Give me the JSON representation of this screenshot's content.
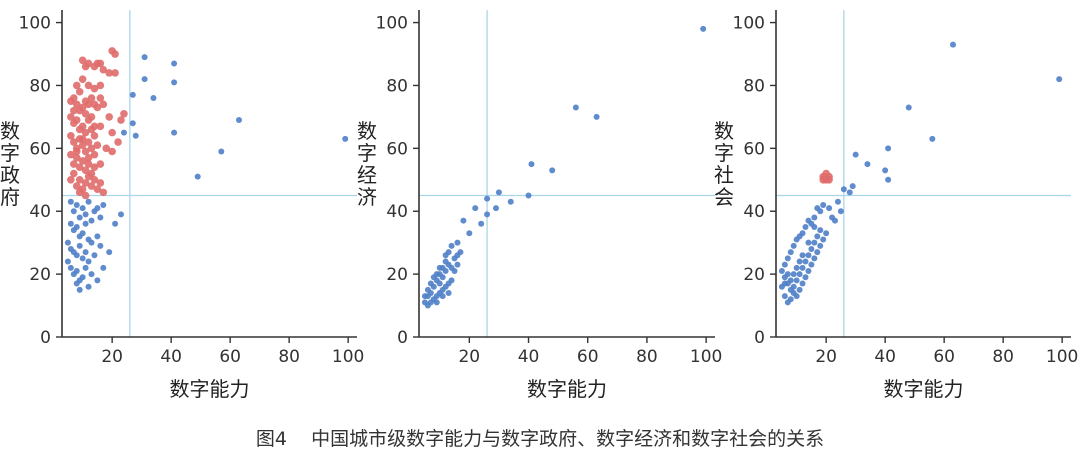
{
  "caption": {
    "label": "图4",
    "text": "中国城市级数字能力与数字政府、数字经济和数字社会的关系"
  },
  "colors": {
    "blue": "#4f7fc8",
    "red": "#e06b6b",
    "refline": "#a9d6ea",
    "axis": "#333333"
  },
  "chart_data": [
    {
      "type": "scatter",
      "title": "",
      "xlabel": "数字能力",
      "ylabel": "数字政府",
      "xlim": [
        3,
        103
      ],
      "ylim": [
        0,
        104
      ],
      "xticks": [
        20,
        40,
        60,
        80,
        100
      ],
      "yticks": [
        0,
        20,
        40,
        60,
        80,
        100
      ],
      "ref_lines": {
        "x": 26,
        "y": 45
      },
      "grid": false,
      "legend": "none",
      "series": [
        {
          "color": "red",
          "points": [
            [
              10,
              88
            ],
            [
              11,
              86
            ],
            [
              12,
              87
            ],
            [
              14,
              86
            ],
            [
              15,
              87
            ],
            [
              16,
              87
            ],
            [
              17,
              85
            ],
            [
              20,
              91
            ],
            [
              21,
              90
            ],
            [
              19,
              84
            ],
            [
              21,
              84
            ],
            [
              8,
              80
            ],
            [
              9,
              78
            ],
            [
              10,
              82
            ],
            [
              12,
              80
            ],
            [
              14,
              79
            ],
            [
              16,
              80
            ],
            [
              6,
              75
            ],
            [
              7,
              76
            ],
            [
              8,
              74
            ],
            [
              9,
              72
            ],
            [
              10,
              73
            ],
            [
              11,
              75
            ],
            [
              12,
              74
            ],
            [
              13,
              76
            ],
            [
              14,
              74
            ],
            [
              15,
              73
            ],
            [
              17,
              74
            ],
            [
              23,
              69
            ],
            [
              24,
              71
            ],
            [
              6,
              70
            ],
            [
              7,
              68
            ],
            [
              8,
              69
            ],
            [
              9,
              66
            ],
            [
              10,
              67
            ],
            [
              11,
              65
            ],
            [
              12,
              69
            ],
            [
              13,
              66
            ],
            [
              14,
              64
            ],
            [
              16,
              67
            ],
            [
              19,
              70
            ],
            [
              20,
              65
            ],
            [
              22,
              62
            ],
            [
              6,
              64
            ],
            [
              7,
              62
            ],
            [
              8,
              60
            ],
            [
              9,
              63
            ],
            [
              10,
              61
            ],
            [
              11,
              59
            ],
            [
              12,
              62
            ],
            [
              13,
              60
            ],
            [
              14,
              58
            ],
            [
              15,
              61
            ],
            [
              18,
              60
            ],
            [
              20,
              59
            ],
            [
              6,
              58
            ],
            [
              7,
              55
            ],
            [
              8,
              57
            ],
            [
              9,
              54
            ],
            [
              10,
              56
            ],
            [
              11,
              53
            ],
            [
              12,
              55
            ],
            [
              13,
              52
            ],
            [
              14,
              54
            ],
            [
              16,
              55
            ],
            [
              6,
              50
            ],
            [
              7,
              52
            ],
            [
              8,
              48
            ],
            [
              9,
              50
            ],
            [
              10,
              47
            ],
            [
              11,
              49
            ],
            [
              12,
              51
            ],
            [
              13,
              48
            ],
            [
              14,
              50
            ],
            [
              15,
              47
            ],
            [
              16,
              49
            ],
            [
              17,
              46
            ],
            [
              9,
              46
            ],
            [
              11,
              45
            ],
            [
              8,
              59
            ],
            [
              11,
              71
            ],
            [
              13,
              70
            ],
            [
              10,
              63
            ],
            [
              12,
              57
            ],
            [
              14,
              67
            ],
            [
              7,
              72
            ],
            [
              16,
              76
            ]
          ]
        },
        {
          "color": "blue",
          "points": [
            [
              31,
              89
            ],
            [
              41,
              87
            ],
            [
              31,
              82
            ],
            [
              41,
              81
            ],
            [
              27,
              77
            ],
            [
              34,
              76
            ],
            [
              27,
              68
            ],
            [
              24,
              65
            ],
            [
              28,
              64
            ],
            [
              41,
              65
            ],
            [
              63,
              69
            ],
            [
              57,
              59
            ],
            [
              49,
              51
            ],
            [
              99,
              63
            ],
            [
              6,
              43
            ],
            [
              7,
              40
            ],
            [
              8,
              42
            ],
            [
              9,
              38
            ],
            [
              10,
              41
            ],
            [
              11,
              39
            ],
            [
              12,
              43
            ],
            [
              13,
              37
            ],
            [
              14,
              40
            ],
            [
              15,
              41
            ],
            [
              17,
              42
            ],
            [
              6,
              36
            ],
            [
              7,
              34
            ],
            [
              8,
              35
            ],
            [
              9,
              32
            ],
            [
              10,
              33
            ],
            [
              11,
              36
            ],
            [
              12,
              31
            ],
            [
              13,
              30
            ],
            [
              15,
              32
            ],
            [
              16,
              38
            ],
            [
              21,
              36
            ],
            [
              23,
              39
            ],
            [
              5,
              30
            ],
            [
              6,
              28
            ],
            [
              7,
              27
            ],
            [
              8,
              26
            ],
            [
              9,
              29
            ],
            [
              10,
              25
            ],
            [
              11,
              27
            ],
            [
              12,
              24
            ],
            [
              14,
              26
            ],
            [
              16,
              29
            ],
            [
              5,
              24
            ],
            [
              6,
              22
            ],
            [
              7,
              20
            ],
            [
              8,
              21
            ],
            [
              9,
              18
            ],
            [
              10,
              19
            ],
            [
              11,
              22
            ],
            [
              12,
              16
            ],
            [
              13,
              20
            ],
            [
              15,
              18
            ],
            [
              19,
              27
            ],
            [
              17,
              22
            ],
            [
              8,
              17
            ],
            [
              9,
              15
            ]
          ]
        }
      ]
    },
    {
      "type": "scatter",
      "title": "",
      "xlabel": "数字能力",
      "ylabel": "数字经济",
      "xlim": [
        3,
        103
      ],
      "ylim": [
        0,
        104
      ],
      "xticks": [
        20,
        40,
        60,
        80,
        100
      ],
      "yticks": [
        0,
        20,
        40,
        60,
        80,
        100
      ],
      "ref_lines": {
        "x": 26,
        "y": 45
      },
      "grid": false,
      "legend": "none",
      "series": [
        {
          "color": "blue",
          "points": [
            [
              99,
              98
            ],
            [
              56,
              73
            ],
            [
              63,
              70
            ],
            [
              41,
              55
            ],
            [
              48,
              53
            ],
            [
              26,
              44
            ],
            [
              30,
              46
            ],
            [
              34,
              43
            ],
            [
              40,
              45
            ],
            [
              29,
              41
            ],
            [
              26,
              39
            ],
            [
              22,
              41
            ],
            [
              24,
              36
            ],
            [
              18,
              37
            ],
            [
              20,
              33
            ],
            [
              16,
              30
            ],
            [
              17,
              27
            ],
            [
              14,
              29
            ],
            [
              15,
              25
            ],
            [
              13,
              27
            ],
            [
              12,
              24
            ],
            [
              11,
              22
            ],
            [
              10,
              20
            ],
            [
              9,
              18
            ],
            [
              8,
              16
            ],
            [
              7,
              14
            ],
            [
              6,
              13
            ],
            [
              5,
              11
            ],
            [
              6,
              10
            ],
            [
              7,
              11
            ],
            [
              8,
              12
            ],
            [
              9,
              13
            ],
            [
              10,
              14
            ],
            [
              11,
              15
            ],
            [
              12,
              16
            ],
            [
              13,
              17
            ],
            [
              14,
              18
            ],
            [
              9,
              20
            ],
            [
              10,
              22
            ],
            [
              11,
              19
            ],
            [
              12,
              21
            ],
            [
              8,
              19
            ],
            [
              7,
              17
            ],
            [
              6,
              15
            ],
            [
              5,
              13
            ],
            [
              13,
              23
            ],
            [
              14,
              22
            ],
            [
              15,
              21
            ],
            [
              16,
              23
            ],
            [
              12,
              26
            ],
            [
              16,
              26
            ],
            [
              10,
              17
            ],
            [
              11,
              13
            ],
            [
              9,
              11
            ],
            [
              13,
              14
            ]
          ]
        }
      ]
    },
    {
      "type": "scatter",
      "title": "",
      "xlabel": "数字能力",
      "ylabel": "数字社会",
      "xlim": [
        3,
        103
      ],
      "ylim": [
        0,
        104
      ],
      "xticks": [
        20,
        40,
        60,
        80,
        100
      ],
      "yticks": [
        0,
        20,
        40,
        60,
        80,
        100
      ],
      "ref_lines": {
        "x": 26,
        "y": 45
      },
      "grid": false,
      "legend": "none",
      "series": [
        {
          "color": "red",
          "points": [
            [
              19,
              51
            ],
            [
              20,
              50
            ],
            [
              21,
              51
            ],
            [
              20,
              52
            ],
            [
              19,
              50
            ],
            [
              21,
              50
            ]
          ]
        },
        {
          "color": "blue",
          "points": [
            [
              99,
              82
            ],
            [
              63,
              93
            ],
            [
              48,
              73
            ],
            [
              56,
              63
            ],
            [
              41,
              60
            ],
            [
              40,
              53
            ],
            [
              41,
              50
            ],
            [
              30,
              58
            ],
            [
              34,
              55
            ],
            [
              29,
              48
            ],
            [
              28,
              46
            ],
            [
              26,
              47
            ],
            [
              24,
              43
            ],
            [
              21,
              41
            ],
            [
              22,
              38
            ],
            [
              19,
              42
            ],
            [
              18,
              40
            ],
            [
              17,
              41
            ],
            [
              16,
              38
            ],
            [
              15,
              36
            ],
            [
              14,
              37
            ],
            [
              13,
              35
            ],
            [
              12,
              33
            ],
            [
              11,
              32
            ],
            [
              10,
              31
            ],
            [
              9,
              29
            ],
            [
              8,
              27
            ],
            [
              7,
              25
            ],
            [
              6,
              23
            ],
            [
              5,
              21
            ],
            [
              6,
              19
            ],
            [
              7,
              17
            ],
            [
              8,
              15
            ],
            [
              9,
              16
            ],
            [
              10,
              18
            ],
            [
              11,
              20
            ],
            [
              12,
              22
            ],
            [
              13,
              24
            ],
            [
              14,
              26
            ],
            [
              15,
              28
            ],
            [
              16,
              30
            ],
            [
              17,
              32
            ],
            [
              18,
              34
            ],
            [
              5,
              16
            ],
            [
              6,
              13
            ],
            [
              7,
              11
            ],
            [
              8,
              12
            ],
            [
              9,
              14
            ],
            [
              10,
              13
            ],
            [
              11,
              15
            ],
            [
              12,
              17
            ],
            [
              13,
              19
            ],
            [
              14,
              21
            ],
            [
              15,
              23
            ],
            [
              16,
              25
            ],
            [
              17,
              27
            ],
            [
              18,
              29
            ],
            [
              19,
              31
            ],
            [
              20,
              33
            ],
            [
              10,
              22
            ],
            [
              11,
              24
            ],
            [
              12,
              26
            ],
            [
              9,
              20
            ],
            [
              8,
              18
            ],
            [
              7,
              20
            ],
            [
              6,
              17
            ],
            [
              14,
              30
            ],
            [
              16,
              35
            ],
            [
              23,
              37
            ],
            [
              25,
              40
            ]
          ]
        }
      ]
    }
  ]
}
